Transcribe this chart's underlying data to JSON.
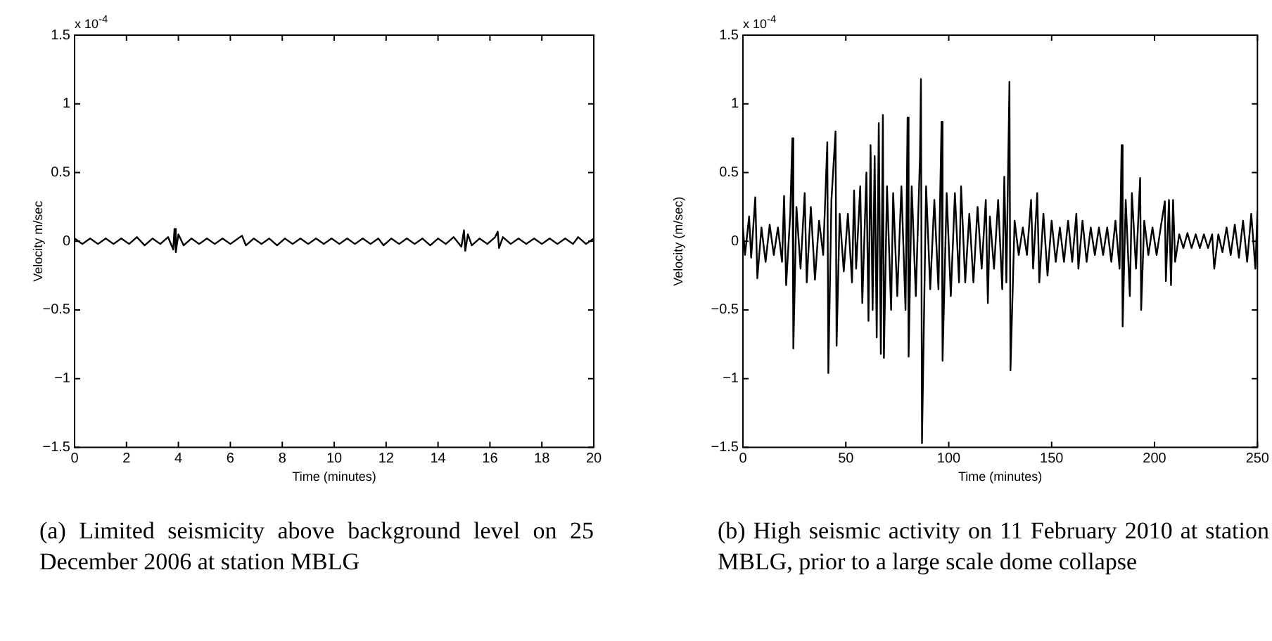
{
  "chart_data": [
    {
      "type": "line",
      "xlabel": "Time (minutes)",
      "ylabel": "Velocity m/sec",
      "grid": false,
      "legend": false,
      "marker": "none",
      "line_style": "solid",
      "annotations": [
        "x 10$^{-4}$",
        "(a) Limited seismicity above background level on 25 December 2006 at station MBLG"
      ],
      "xlim": [
        0,
        20
      ],
      "xticks": [
        0,
        2,
        4,
        6,
        8,
        10,
        12,
        14,
        16,
        18,
        20
      ],
      "ylim": [
        -1.5,
        1.5
      ],
      "yticks": [
        {
          "value": -1.5,
          "label": "−1.5"
        },
        {
          "value": -1,
          "label": "−1"
        },
        {
          "value": -0.5,
          "label": "−0.5"
        },
        0,
        0.5,
        1,
        1.5
      ],
      "series": [
        {
          "color": "#000000",
          "x": [
            0,
            0.3,
            0.6,
            0.9,
            1.2,
            1.5,
            1.8,
            2.1,
            2.4,
            2.7,
            3.0,
            3.3,
            3.6,
            3.8,
            3.85,
            3.9,
            4.0,
            4.2,
            4.5,
            4.8,
            5.1,
            5.4,
            5.7,
            6.0,
            6.3,
            6.45,
            6.6,
            6.9,
            7.2,
            7.5,
            7.8,
            8.1,
            8.4,
            8.7,
            9.0,
            9.3,
            9.6,
            9.9,
            10.2,
            10.5,
            10.8,
            11.1,
            11.4,
            11.7,
            11.9,
            12.2,
            12.5,
            12.8,
            13.1,
            13.4,
            13.7,
            14.0,
            14.3,
            14.6,
            14.9,
            15.0,
            15.05,
            15.15,
            15.3,
            15.6,
            15.9,
            16.2,
            16.3,
            16.35,
            16.5,
            16.8,
            17.1,
            17.4,
            17.7,
            18.0,
            18.3,
            18.6,
            18.9,
            19.2,
            19.4,
            19.7,
            20.0
          ],
          "values": [
            0.02,
            -0.02,
            0.02,
            -0.02,
            0.02,
            -0.02,
            0.02,
            -0.02,
            0.03,
            -0.03,
            0.02,
            -0.02,
            0.03,
            -0.06,
            0.09,
            -0.08,
            0.05,
            -0.03,
            0.02,
            -0.02,
            0.02,
            -0.02,
            0.02,
            -0.02,
            0.02,
            0.04,
            -0.03,
            0.02,
            -0.02,
            0.02,
            -0.03,
            0.02,
            -0.02,
            0.02,
            -0.02,
            0.02,
            -0.02,
            0.02,
            -0.02,
            0.02,
            -0.02,
            0.02,
            -0.02,
            0.02,
            -0.03,
            0.02,
            -0.02,
            0.02,
            -0.02,
            0.02,
            -0.03,
            0.02,
            -0.02,
            0.03,
            -0.04,
            0.08,
            -0.07,
            0.05,
            -0.03,
            0.02,
            -0.02,
            0.03,
            0.07,
            -0.05,
            0.03,
            -0.02,
            0.02,
            -0.02,
            0.02,
            -0.02,
            0.02,
            -0.02,
            0.02,
            -0.02,
            0.03,
            -0.02,
            0.02
          ]
        }
      ]
    },
    {
      "type": "line",
      "xlabel": "Time (minutes)",
      "ylabel": "Velocity (m/sec)",
      "grid": false,
      "legend": false,
      "marker": "none",
      "line_style": "solid",
      "annotations": [
        "x 10$^{-4}$",
        "(b) High seismic activity on 11 February 2010 at station MBLG, prior to a large scale dome collapse"
      ],
      "xlim": [
        0,
        250
      ],
      "xticks": [
        0,
        50,
        100,
        150,
        200,
        250
      ],
      "ylim": [
        -1.5,
        1.5
      ],
      "yticks": [
        {
          "value": -1.5,
          "label": "−1.5"
        },
        {
          "value": -1,
          "label": "−1"
        },
        {
          "value": -0.5,
          "label": "−0.5"
        },
        0,
        0.5,
        1,
        1.5
      ],
      "series": [
        {
          "color": "#000000",
          "x": [
            0,
            1,
            3,
            4,
            6,
            7,
            9,
            11,
            13,
            15,
            17,
            19,
            20,
            21,
            23,
            24,
            24.5,
            26,
            28,
            30,
            31,
            33,
            35,
            37,
            39,
            41,
            41.5,
            43,
            45,
            45.5,
            47,
            49,
            51,
            53,
            54,
            55,
            57,
            58,
            60,
            61,
            62,
            63,
            64,
            65,
            66,
            67,
            68,
            68.5,
            70,
            72,
            73,
            75,
            77,
            79,
            80,
            80.5,
            82,
            84,
            86,
            86.5,
            87,
            89,
            91,
            93,
            95,
            96.5,
            97,
            99,
            101,
            103,
            105,
            106,
            108,
            110,
            112,
            114,
            116,
            118,
            119,
            120,
            122,
            124,
            126,
            127,
            128,
            129.5,
            130,
            132,
            134,
            136,
            138,
            140,
            141,
            143,
            144,
            146,
            148,
            150,
            152,
            154,
            156,
            158,
            160,
            162,
            163,
            165,
            167,
            169,
            171,
            173,
            175,
            177,
            179,
            181,
            183,
            184,
            184.5,
            186,
            188,
            189,
            191,
            193,
            193.5,
            195,
            197,
            199,
            201,
            203,
            205,
            205.5,
            207,
            208,
            209,
            210,
            212,
            214,
            216,
            218,
            220,
            222,
            224,
            226,
            228,
            229,
            231,
            233,
            235,
            237,
            239,
            241,
            243,
            245,
            247,
            249,
            250
          ],
          "values": [
            0.1,
            -0.1,
            0.18,
            -0.12,
            0.32,
            -0.27,
            0.1,
            -0.15,
            0.12,
            -0.1,
            0.1,
            -0.15,
            0.33,
            -0.32,
            0.2,
            0.75,
            -0.78,
            0.25,
            -0.2,
            0.35,
            -0.3,
            0.25,
            -0.28,
            0.15,
            -0.1,
            0.72,
            -0.96,
            0.3,
            0.8,
            -0.76,
            0.2,
            -0.22,
            0.2,
            -0.3,
            0.37,
            -0.2,
            0.4,
            -0.45,
            0.5,
            -0.58,
            0.7,
            -0.5,
            0.62,
            -0.7,
            0.86,
            -0.82,
            0.92,
            -0.85,
            0.4,
            -0.5,
            0.35,
            -0.4,
            0.4,
            -0.5,
            0.9,
            -0.84,
            0.4,
            -0.4,
            0.6,
            1.18,
            -1.47,
            0.4,
            -0.35,
            0.3,
            -0.35,
            0.87,
            -0.87,
            0.35,
            -0.4,
            0.35,
            -0.3,
            0.4,
            -0.3,
            0.2,
            -0.3,
            0.25,
            -0.2,
            0.3,
            -0.45,
            0.18,
            -0.2,
            0.3,
            -0.35,
            0.47,
            -0.3,
            1.16,
            -0.94,
            0.15,
            -0.1,
            0.1,
            -0.1,
            0.3,
            -0.2,
            0.35,
            -0.3,
            0.2,
            -0.25,
            0.15,
            -0.15,
            0.1,
            -0.15,
            0.15,
            -0.15,
            0.2,
            -0.2,
            0.15,
            -0.15,
            0.1,
            -0.1,
            0.1,
            -0.1,
            0.1,
            -0.15,
            0.15,
            -0.2,
            0.7,
            -0.62,
            0.3,
            -0.4,
            0.35,
            -0.2,
            0.46,
            -0.5,
            0.15,
            -0.1,
            0.1,
            -0.1,
            0.1,
            0.29,
            -0.29,
            0.3,
            -0.32,
            0.3,
            -0.15,
            0.05,
            -0.05,
            0.06,
            -0.05,
            0.05,
            -0.05,
            0.05,
            -0.05,
            0.05,
            -0.2,
            0.05,
            -0.08,
            0.1,
            -0.1,
            0.12,
            -0.12,
            0.15,
            -0.15,
            0.2,
            -0.2,
            0.22
          ]
        }
      ]
    }
  ]
}
